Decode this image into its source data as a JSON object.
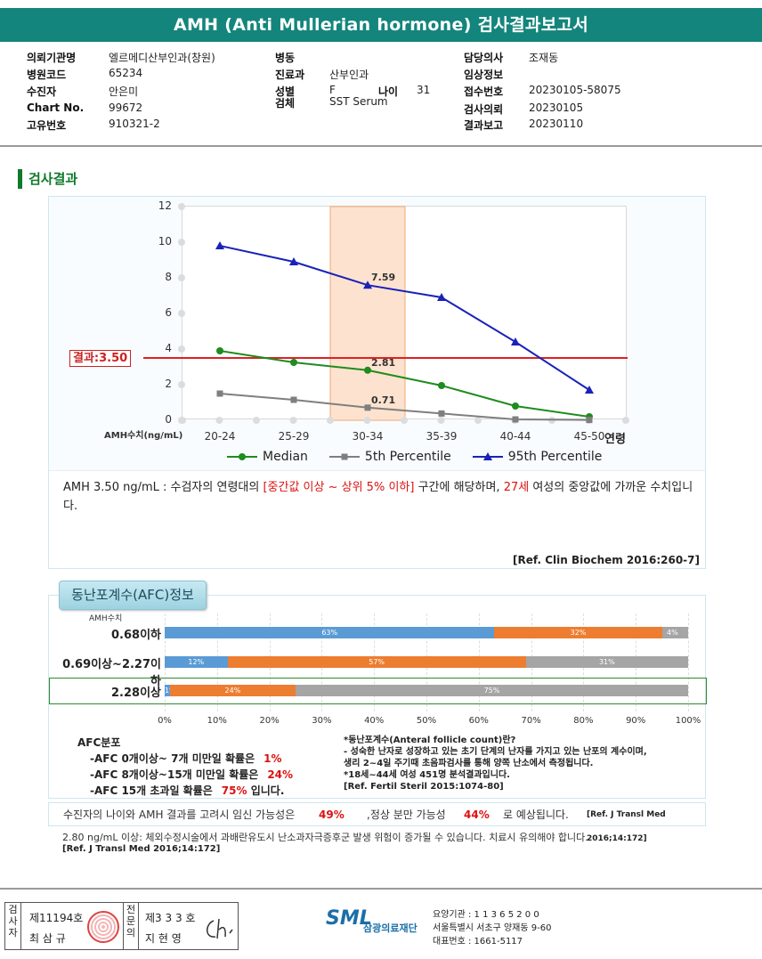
{
  "title": "AMH (Anti Mullerian hormone) 검사결과보고서",
  "patient": {
    "fields": [
      {
        "label": "의뢰기관명",
        "value": "엘르메디산부인과(창원)"
      },
      {
        "label": "병원코드",
        "value": "65234"
      },
      {
        "label": "수진자",
        "value": "안은미"
      },
      {
        "label": "Chart No.",
        "value": "99672"
      },
      {
        "label": "고유번호",
        "value": "910321-2"
      },
      {
        "label": "병동",
        "value": ""
      },
      {
        "label": "진료과",
        "value": "산부인과"
      },
      {
        "label": "성별",
        "value": "F"
      },
      {
        "label": "나이",
        "value": "31"
      },
      {
        "label": "검체",
        "value": "SST Serum"
      },
      {
        "label": "담당의사",
        "value": "조재동"
      },
      {
        "label": "임상정보",
        "value": ""
      },
      {
        "label": "접수번호",
        "value": "20230105-58075"
      },
      {
        "label": "검사의뢰",
        "value": "20230105"
      },
      {
        "label": "결과보고",
        "value": "20230110"
      }
    ]
  },
  "section_title": "검사결과",
  "chart_data": {
    "type": "line",
    "categories": [
      "20-24",
      "25-29",
      "30-34",
      "35-39",
      "40-44",
      "45-50"
    ],
    "x_unit_label": "연령",
    "y_unit_label": "AMH수치(ng/mL)",
    "ylim": [
      0,
      12
    ],
    "yticks": [
      "0",
      "2",
      "4",
      "6",
      "8",
      "10",
      "12"
    ],
    "grid": false,
    "legend_position": "bottom",
    "highlight_category": "30-34",
    "result_line": {
      "value": 3.5,
      "label": "결과:3.50",
      "color": "#dd2222"
    },
    "series": [
      {
        "name": "Median",
        "color": "#1e8c1e",
        "marker": "circle",
        "values": [
          3.9,
          3.25,
          2.81,
          1.95,
          0.8,
          0.2
        ],
        "labeled_index": 2,
        "label": "2.81"
      },
      {
        "name": "5th Percentile",
        "color": "#7f7f7f",
        "marker": "square",
        "values": [
          1.5,
          1.15,
          0.71,
          0.38,
          0.05,
          0.02
        ],
        "labeled_index": 2,
        "label": "0.71"
      },
      {
        "name": "95th Percentile",
        "color": "#1a22b8",
        "marker": "triangle",
        "values": [
          9.8,
          8.9,
          7.59,
          6.9,
          4.4,
          1.7
        ],
        "labeled_index": 2,
        "label": "7.59"
      }
    ]
  },
  "interpretation": {
    "p1": "AMH  3.50 ng/mL : 수검자의 연령대의 ",
    "range": "[중간값 이상 ~ 상위 5% 이하]",
    "p2": "  구간에 해당하며, ",
    "age": "27세",
    "p3": " 여성의 중앙값에 가까운 수치입니다.",
    "ref": "[Ref. Clin Biochem 2016:260-7]"
  },
  "afc": {
    "tab_title": "동난포계수(AFC)정보",
    "unit_label": "AMH수치",
    "colors": {
      "afc_0_7": "#5b9bd5",
      "afc_8_15": "#ed7d31",
      "afc_over15": "#a5a5a5"
    },
    "rows": [
      {
        "label": "0.68이하",
        "segments": [
          63,
          32,
          4
        ],
        "texts": [
          "63%",
          "32%",
          "4%"
        ]
      },
      {
        "label": "0.69이상~2.27이하",
        "segments": [
          12,
          57,
          31
        ],
        "texts": [
          "12%",
          "57%",
          "31%"
        ]
      },
      {
        "label": "2.28이상",
        "segments": [
          1,
          24,
          75
        ],
        "texts": [
          "1%",
          "24%",
          "75%"
        ],
        "highlighted": true
      }
    ],
    "axis": [
      "0%",
      "10%",
      "20%",
      "30%",
      "40%",
      "50%",
      "60%",
      "70%",
      "80%",
      "90%",
      "100%"
    ],
    "dist_title": "AFC분포",
    "dist": [
      {
        "text": "-AFC  0개이상~ 7개 미만일 확률은",
        "value": "1%",
        "suffix": ""
      },
      {
        "text": "-AFC  8개이상~15개 미만일 확률은",
        "value": "24%",
        "suffix": ""
      },
      {
        "text": "-AFC  15개 초과일 확률은",
        "value": "75%",
        "suffix": " 입니다."
      }
    ],
    "note_lines": [
      "*동난포계수(Anteral follicle count)란?",
      "- 성숙한 난자로 성장하고 있는 초기 단계의 난자를 가지고 있는 난포의 계수이며,",
      "   생리 2~4일 주기때 초음파검사를 통해 양쪽 난소에서 측정됩니다.",
      "*18세~44세 여성 451명 분석결과입니다.",
      "[Ref. Fertil Steril 2015:1074-80]"
    ]
  },
  "fertility": {
    "t1": "수진자의 나이와 AMH 결과를 고려시 임신 가능성은",
    "v1": "49%",
    "t2": ",정상 분만 가능성",
    "v2": "44%",
    "t3": "로 예상됩니다.",
    "ref": "[Ref. J Transl Med 2016;14:172]"
  },
  "ohss_note": "2.80  ng/mL  이상: 체외수정시술에서 과배란유도시 난소과자극증후군 발생 위험이 증가될 수 있습니다. 치료시 유의해야 합니다.",
  "ohss_ref": "[Ref. J Transl Med 2016;14:172]",
  "footer": {
    "inspector_label": "검사자",
    "inspector_no": "제11194호",
    "inspector_name": "최 삼 규",
    "confirm_label": "전문의",
    "confirm_no": "제3 3 3 호",
    "confirm_name": "지 현 영",
    "lab_logo": "SML",
    "lab_name": "삼광의료재단",
    "org_lines": [
      "요양기관 : 1 1 3 6 5 2 0 0",
      "서울특별시 서초구 양재동 9-60",
      "대표번호 : 1661-5117"
    ]
  }
}
